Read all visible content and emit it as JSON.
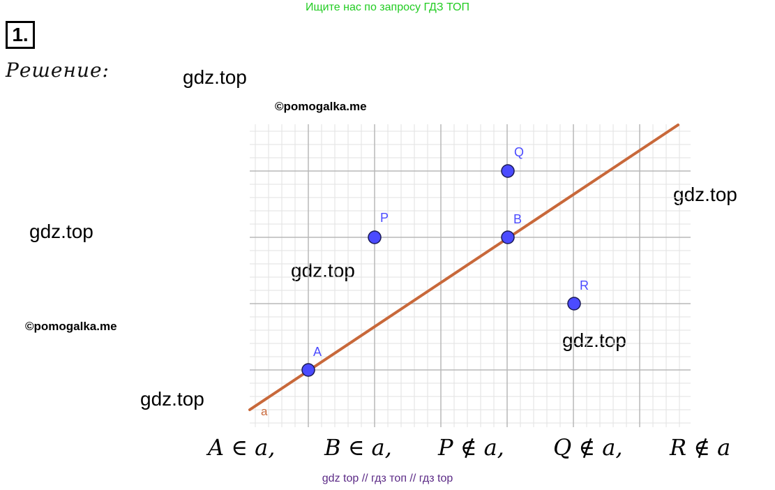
{
  "banner": "Ищите нас по запросу ГДЗ ТОП",
  "task_number": "1.",
  "solution_label": "Решение:",
  "watermarks": {
    "gdz_1": "gdz.top",
    "gdz_2": "gdz.top",
    "gdz_3": "gdz.top",
    "gdz_4": "gdz.top",
    "gdz_5": "gdz.top",
    "gdz_6": "gdz.top",
    "copyright_1": "©pomogalka.me",
    "copyright_2": "©pomogalka.me"
  },
  "diagram": {
    "line_label": "a",
    "points": {
      "A": "A",
      "B": "B",
      "P": "P",
      "Q": "Q",
      "R": "R"
    },
    "colors": {
      "line": "#c8683a",
      "point_fill": "#4b4bff",
      "point_label": "#4b4bff",
      "grid_major": "#b8b8b8",
      "grid_minor": "#e2e2e2"
    }
  },
  "relations": {
    "r1": "A ∈ a,",
    "r2": "B ∈ a,",
    "r3": "P ∉ a,",
    "r4": "Q ∉ a,",
    "r5": "R ∉ a"
  },
  "footer": "gdz top  //  гдз топ  //  гдз top"
}
